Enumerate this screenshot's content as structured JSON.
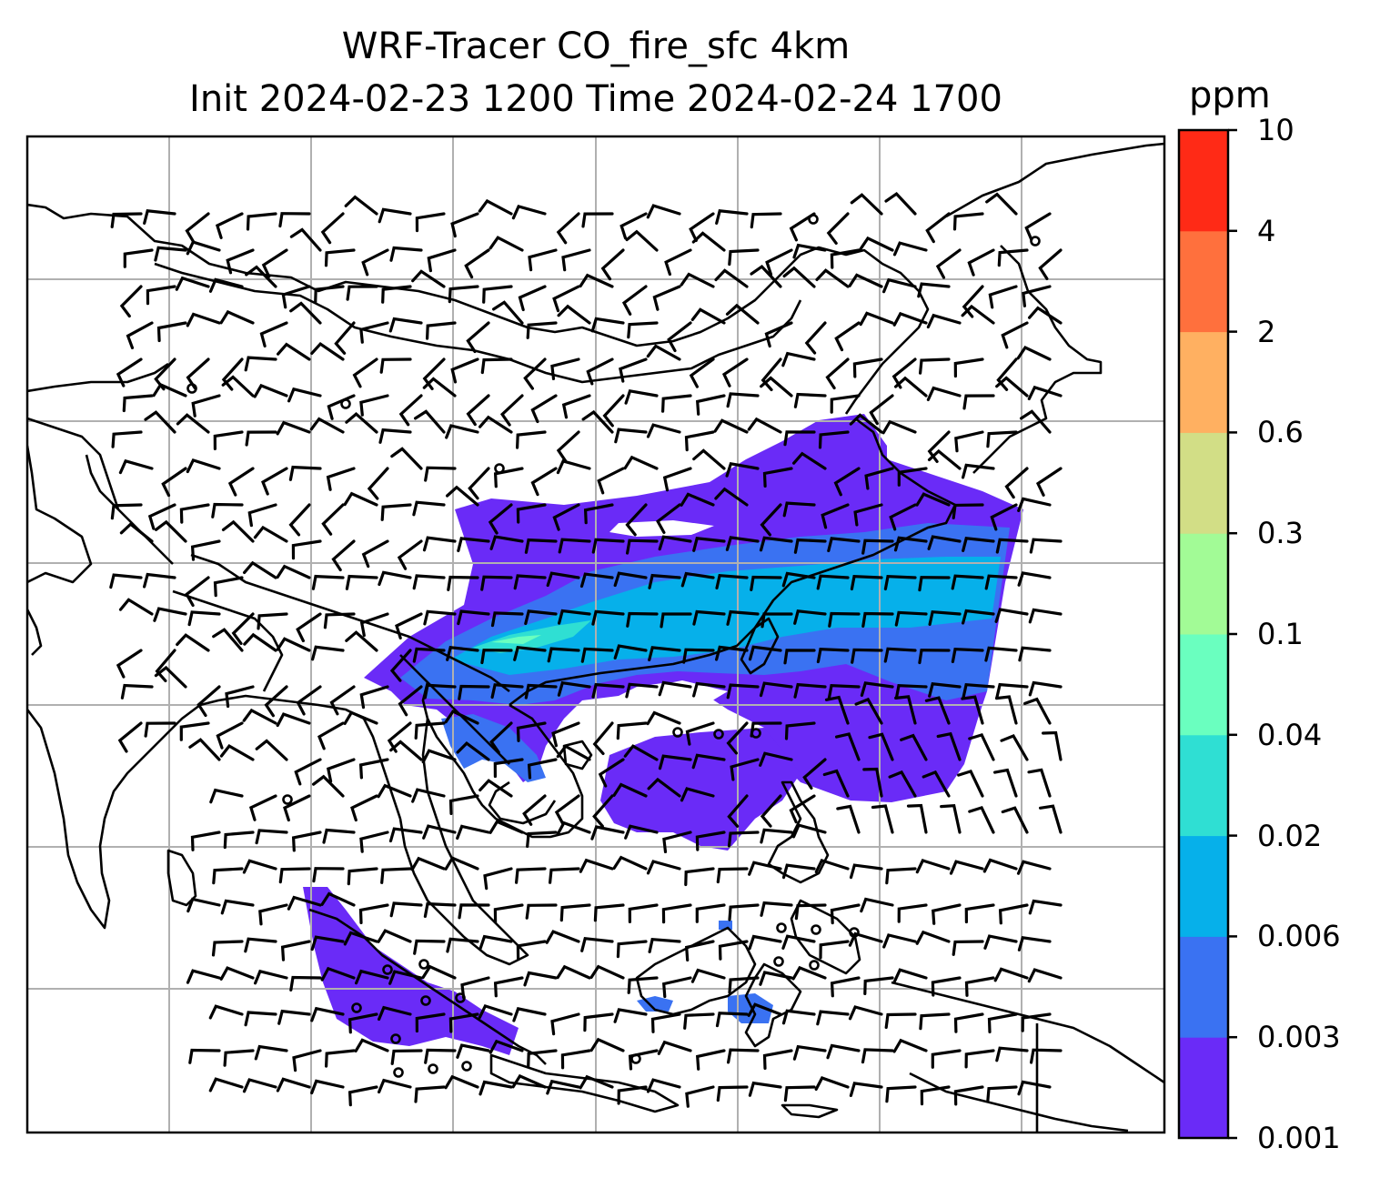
{
  "title": {
    "line1": "WRF-Tracer CO_fire_sfc 4km",
    "line2": "Init 2024-02-23 1200 Time 2024-02-24 1700"
  },
  "colorbar": {
    "units": "ppm",
    "levels": [
      "0.001",
      "0.003",
      "0.006",
      "0.02",
      "0.04",
      "0.1",
      "0.3",
      "0.6",
      "2",
      "4",
      "10"
    ],
    "colors": [
      "#6a2bf7",
      "#3a72f2",
      "#06b0ea",
      "#2fdfd3",
      "#6affbf",
      "#a2fb96",
      "#d2de86",
      "#ffb061",
      "#ff703d",
      "#ff2a16"
    ]
  },
  "map": {
    "variable": "CO_fire_sfc",
    "overlays": [
      "coastlines",
      "country-borders",
      "gridlines",
      "wind-barbs"
    ],
    "grid_color": "#b0b0b0"
  }
}
